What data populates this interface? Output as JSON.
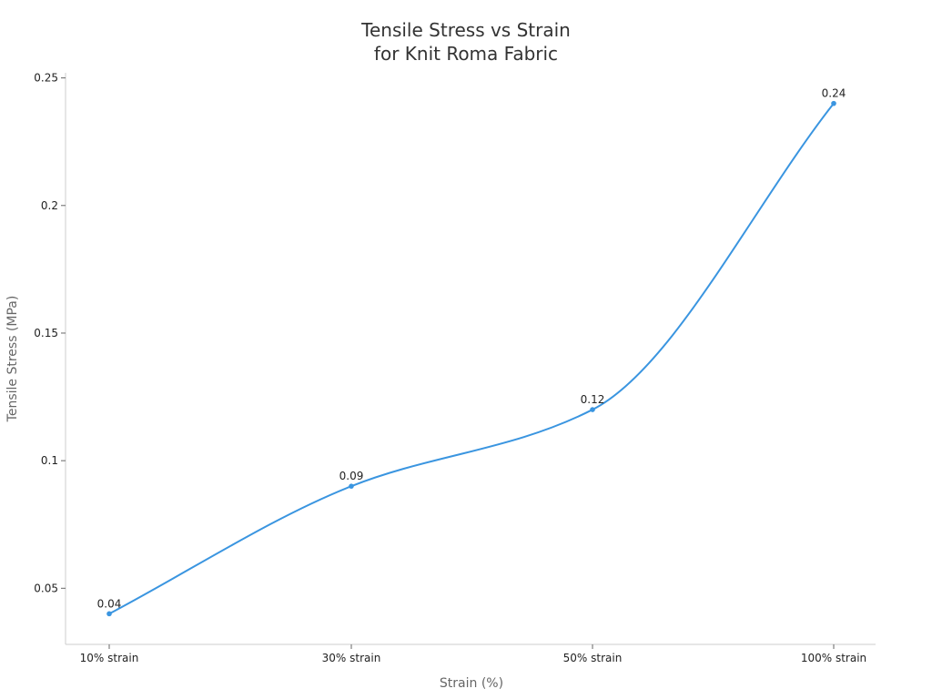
{
  "chart_data": {
    "type": "line",
    "title": [
      "Tensile Stress vs Strain",
      "for Knit Roma Fabric"
    ],
    "xlabel": "Strain (%)",
    "ylabel": "Tensile Stress (MPa)",
    "categories": [
      "10% strain",
      "30% strain",
      "50% strain",
      "100% strain"
    ],
    "series": [
      {
        "values": [
          0.04,
          0.09,
          0.12,
          0.24
        ]
      }
    ],
    "data_labels": [
      "0.04",
      "0.09",
      "0.12",
      "0.24"
    ],
    "ylim": [
      0.028,
      0.252
    ],
    "yticks": [
      0.05,
      0.1,
      0.15,
      0.2,
      0.25
    ],
    "ytick_labels": [
      "0.05",
      "0.1",
      "0.15",
      "0.2",
      "0.25"
    ],
    "grid": false,
    "line_color": "#3a95e0",
    "curve": "smooth"
  }
}
